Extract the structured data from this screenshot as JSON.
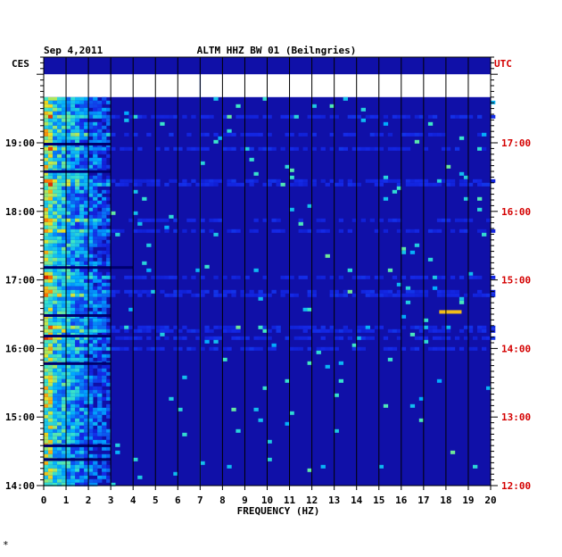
{
  "chart_data": {
    "type": "heatmap",
    "date": "Sep 4,2011",
    "title": "ALTM HHZ BW 01 (Beilngries)",
    "xlabel": "FREQUENCY (HZ)",
    "left_timezone": "CES",
    "right_timezone": "UTC",
    "xlim": [
      0,
      20
    ],
    "x_ticks": [
      "0",
      "1",
      "2",
      "3",
      "4",
      "5",
      "6",
      "7",
      "8",
      "9",
      "10",
      "11",
      "12",
      "13",
      "14",
      "15",
      "16",
      "17",
      "18",
      "19",
      "20"
    ],
    "y_range_ces_hours": [
      14.0,
      20.25
    ],
    "left_tick_labels": [
      "14:00",
      "15:00",
      "16:00",
      "17:00",
      "18:00",
      "19:00"
    ],
    "right_tick_labels": [
      "12:00",
      "13:00",
      "14:00",
      "15:00",
      "16:00",
      "17:00"
    ],
    "no_data_band_ces": "19:40-20:00",
    "colors": {
      "background": "#1010a8",
      "dark_band": "#00006e",
      "frame": "#000000",
      "utc_text": "#d40000",
      "no_data": "#ffffff"
    },
    "energy_band_hz": [
      0,
      3
    ],
    "notable_events": [
      {
        "frequency_hz": 18.2,
        "time_ces": "16:32",
        "level": "high"
      },
      {
        "frequency_hz": 7.0,
        "time_ces": "14:00-20:00",
        "level": "line"
      }
    ]
  },
  "footer_mark": "*"
}
